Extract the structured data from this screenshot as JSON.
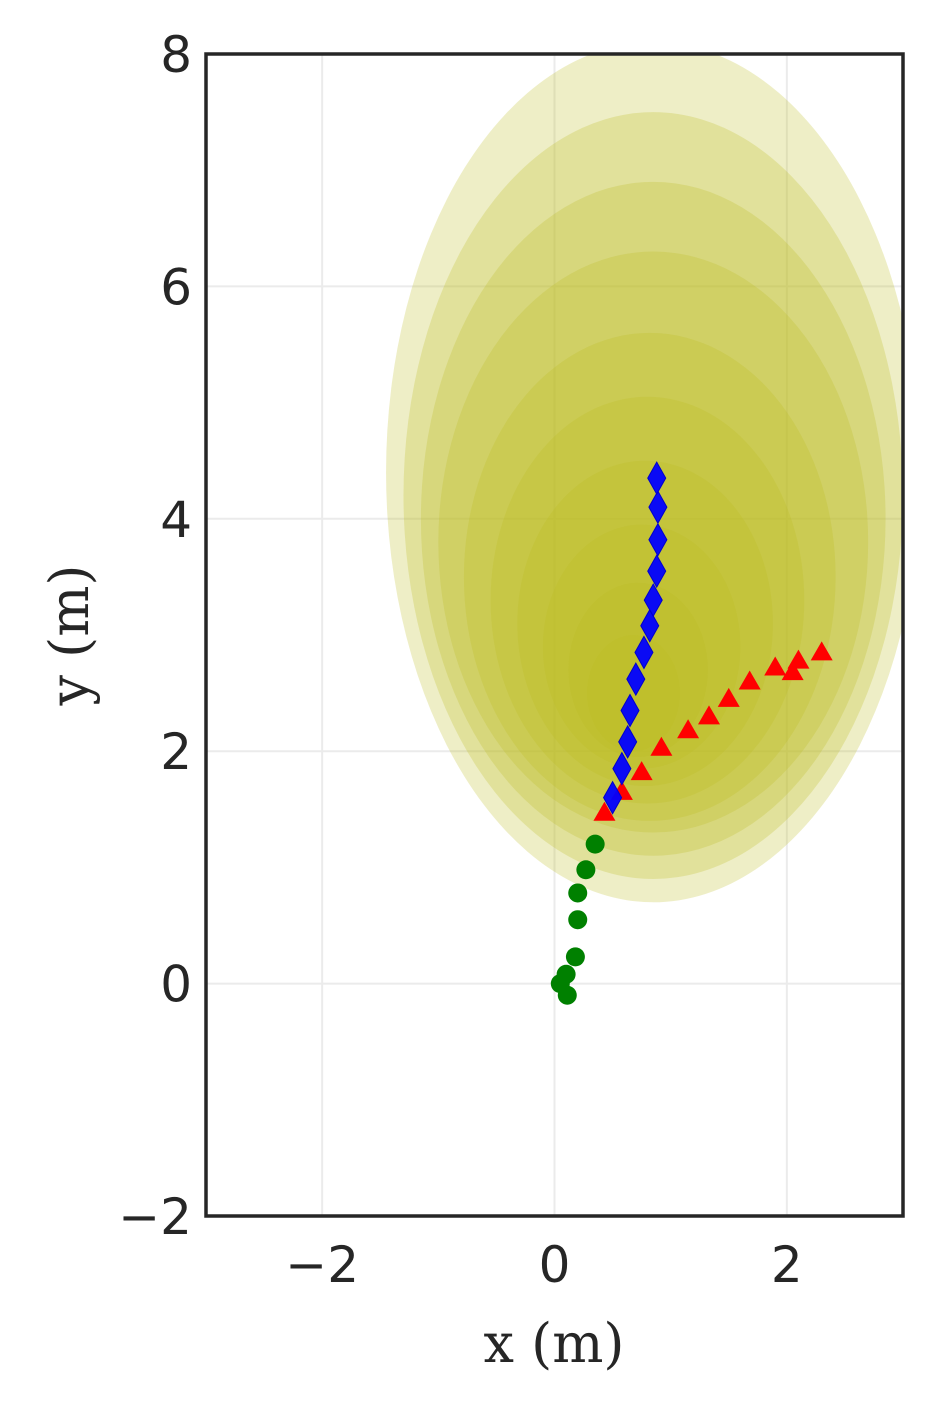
{
  "chart_data": {
    "type": "scatter",
    "xlabel": "x (m)",
    "ylabel": "y (m)",
    "xlim": [
      -3,
      3
    ],
    "ylim": [
      -2,
      8
    ],
    "grid": true,
    "x_ticks": [
      -2,
      0,
      2
    ],
    "y_ticks": [
      -2,
      0,
      2,
      4,
      6,
      8
    ],
    "x_tick_labels": [
      "−2",
      "0",
      "2"
    ],
    "y_tick_labels": [
      "−2",
      "0",
      "2",
      "4",
      "6",
      "8"
    ],
    "uncertainty_ellipses": {
      "color": "#bcbd22",
      "items": [
        {
          "cx": 0.85,
          "cy": 4.4,
          "rx": 2.3,
          "ry": 3.7
        },
        {
          "cx": 0.85,
          "cy": 4.2,
          "rx": 2.15,
          "ry": 3.3
        },
        {
          "cx": 0.85,
          "cy": 4.0,
          "rx": 2.0,
          "ry": 2.9
        },
        {
          "cx": 0.85,
          "cy": 3.8,
          "rx": 1.85,
          "ry": 2.5
        },
        {
          "cx": 0.82,
          "cy": 3.5,
          "rx": 1.6,
          "ry": 2.1
        },
        {
          "cx": 0.8,
          "cy": 3.3,
          "rx": 1.35,
          "ry": 1.75
        },
        {
          "cx": 0.78,
          "cy": 3.1,
          "rx": 1.1,
          "ry": 1.4
        },
        {
          "cx": 0.75,
          "cy": 2.9,
          "rx": 0.85,
          "ry": 1.05
        },
        {
          "cx": 0.72,
          "cy": 2.7,
          "rx": 0.6,
          "ry": 0.75
        },
        {
          "cx": 0.68,
          "cy": 2.5,
          "rx": 0.4,
          "ry": 0.5
        }
      ]
    },
    "series": [
      {
        "marker": "circle",
        "color": "#008000",
        "points": [
          [
            0.05,
            0.0
          ],
          [
            0.1,
            0.08
          ],
          [
            0.11,
            -0.1
          ],
          [
            0.18,
            0.23
          ],
          [
            0.2,
            0.55
          ],
          [
            0.2,
            0.78
          ],
          [
            0.27,
            0.98
          ],
          [
            0.35,
            1.2
          ]
        ]
      },
      {
        "marker": "triangle",
        "color": "#ff0000",
        "points": [
          [
            0.43,
            1.47
          ],
          [
            0.58,
            1.65
          ],
          [
            0.75,
            1.82
          ],
          [
            0.92,
            2.03
          ],
          [
            1.15,
            2.18
          ],
          [
            1.33,
            2.3
          ],
          [
            1.5,
            2.45
          ],
          [
            1.68,
            2.6
          ],
          [
            1.9,
            2.72
          ],
          [
            2.05,
            2.68
          ],
          [
            2.1,
            2.78
          ],
          [
            2.3,
            2.85
          ]
        ]
      },
      {
        "marker": "diamond",
        "color": "#0000ff",
        "points": [
          [
            0.5,
            1.6
          ],
          [
            0.58,
            1.85
          ],
          [
            0.63,
            2.08
          ],
          [
            0.65,
            2.35
          ],
          [
            0.7,
            2.62
          ],
          [
            0.77,
            2.85
          ],
          [
            0.82,
            3.08
          ],
          [
            0.85,
            3.3
          ],
          [
            0.88,
            3.55
          ],
          [
            0.89,
            3.82
          ],
          [
            0.89,
            4.1
          ],
          [
            0.88,
            4.35
          ]
        ]
      }
    ]
  }
}
